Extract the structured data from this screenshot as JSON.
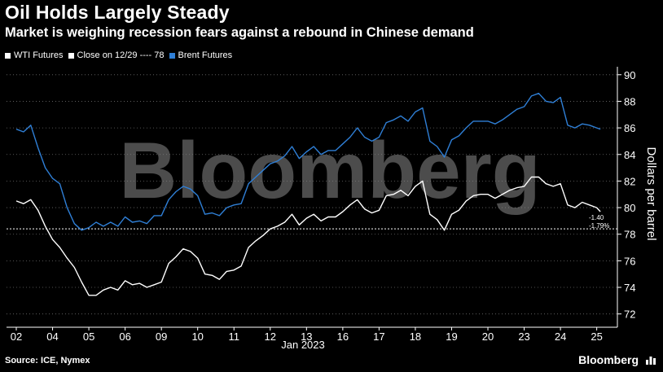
{
  "title": "Oil Holds Largely Steady",
  "subtitle": "Market is weighing recession fears against a rebound in Chinese demand",
  "legend": {
    "wti": "WTI Futures",
    "close": "Close on 12/29 ---- 78",
    "brent": "Brent Futures"
  },
  "source": "Source: ICE, Nymex",
  "brand": "Bloomberg",
  "watermark": "Bloomberg",
  "colors": {
    "background": "#000000",
    "wti": "#ffffff",
    "brent": "#2f7fd6",
    "grid": "#6b6b6b"
  },
  "annotation": {
    "change": "-1.40",
    "change_pct": "-1.79%"
  },
  "chart_data": {
    "type": "line",
    "title": "Oil Holds Largely Steady",
    "subtitle": "Market is weighing recession fears against a rebound in Chinese demand",
    "xlabel": "Jan 2023",
    "ylabel": "Dollars per barrel",
    "ylim": [
      71,
      90.6
    ],
    "y_ticks": [
      72,
      74,
      76,
      78,
      80,
      82,
      84,
      86,
      88,
      90
    ],
    "x_ticks": [
      "02",
      "04",
      "05",
      "06",
      "09",
      "10",
      "11",
      "12",
      "13",
      "16",
      "17",
      "18",
      "19",
      "20",
      "23",
      "24",
      "25"
    ],
    "x_range": [
      0,
      16.3
    ],
    "reference_line": {
      "label": "Close on 12/29",
      "value": 78.4
    },
    "grid": true,
    "series": [
      {
        "name": "WTI Futures",
        "x": [
          0,
          0.2,
          0.4,
          0.6,
          0.8,
          1.0,
          1.2,
          1.4,
          1.6,
          1.8,
          2.0,
          2.2,
          2.4,
          2.6,
          2.8,
          3.0,
          3.2,
          3.4,
          3.6,
          3.8,
          4.0,
          4.2,
          4.4,
          4.6,
          4.8,
          5.0,
          5.2,
          5.4,
          5.6,
          5.8,
          6.0,
          6.2,
          6.4,
          6.6,
          6.8,
          7.0,
          7.2,
          7.4,
          7.6,
          7.8,
          8.0,
          8.2,
          8.4,
          8.6,
          8.8,
          9.0,
          9.2,
          9.4,
          9.6,
          9.8,
          10.0,
          10.2,
          10.4,
          10.6,
          10.8,
          11.0,
          11.2,
          11.4,
          11.6,
          11.8,
          12.0,
          12.2,
          12.4,
          12.6,
          12.8,
          13.0,
          13.2,
          13.4,
          13.6,
          13.8,
          14.0,
          14.2,
          14.4,
          14.6,
          14.8,
          15.0,
          15.2,
          15.4,
          15.6,
          15.8,
          16.0,
          16.1
        ],
        "values": [
          80.5,
          80.3,
          80.6,
          79.8,
          78.6,
          77.6,
          77.0,
          76.2,
          75.5,
          74.4,
          73.4,
          73.4,
          73.8,
          74.0,
          73.8,
          74.5,
          74.2,
          74.3,
          74.0,
          74.2,
          74.4,
          75.8,
          76.3,
          76.9,
          76.7,
          76.2,
          75.0,
          74.9,
          74.6,
          75.2,
          75.3,
          75.6,
          77.0,
          77.5,
          77.9,
          78.4,
          78.6,
          78.9,
          79.5,
          78.7,
          79.2,
          79.5,
          79.0,
          79.3,
          79.3,
          79.7,
          80.2,
          80.6,
          79.9,
          79.6,
          79.8,
          80.9,
          81.0,
          81.3,
          80.9,
          81.6,
          82.0,
          79.5,
          79.1,
          78.3,
          79.5,
          79.8,
          80.5,
          80.9,
          81.0,
          81.0,
          80.7,
          81.0,
          81.3,
          81.5,
          81.6,
          82.3,
          82.3,
          81.8,
          81.6,
          81.8,
          80.2,
          80.0,
          80.4,
          80.2,
          80.0,
          79.7
        ]
      },
      {
        "name": "Brent Futures",
        "x": [
          0,
          0.2,
          0.4,
          0.6,
          0.8,
          1.0,
          1.2,
          1.4,
          1.6,
          1.8,
          2.0,
          2.2,
          2.4,
          2.6,
          2.8,
          3.0,
          3.2,
          3.4,
          3.6,
          3.8,
          4.0,
          4.2,
          4.4,
          4.6,
          4.8,
          5.0,
          5.2,
          5.4,
          5.6,
          5.8,
          6.0,
          6.2,
          6.4,
          6.6,
          6.8,
          7.0,
          7.2,
          7.4,
          7.6,
          7.8,
          8.0,
          8.2,
          8.4,
          8.6,
          8.8,
          9.0,
          9.2,
          9.4,
          9.6,
          9.8,
          10.0,
          10.2,
          10.4,
          10.6,
          10.8,
          11.0,
          11.2,
          11.4,
          11.6,
          11.8,
          12.0,
          12.2,
          12.4,
          12.6,
          12.8,
          13.0,
          13.2,
          13.4,
          13.6,
          13.8,
          14.0,
          14.2,
          14.4,
          14.6,
          14.8,
          15.0,
          15.2,
          15.4,
          15.6,
          15.8,
          16.0,
          16.1
        ],
        "values": [
          85.9,
          85.7,
          86.2,
          84.5,
          83.0,
          82.2,
          81.8,
          80.0,
          78.8,
          78.3,
          78.5,
          78.9,
          78.6,
          78.9,
          78.6,
          79.3,
          78.9,
          79.0,
          78.8,
          79.4,
          79.4,
          80.6,
          81.2,
          81.6,
          81.4,
          80.9,
          79.5,
          79.6,
          79.4,
          80.0,
          80.2,
          80.3,
          81.8,
          82.3,
          82.8,
          83.3,
          83.5,
          83.9,
          84.6,
          83.7,
          84.2,
          84.6,
          84.0,
          84.3,
          84.3,
          84.8,
          85.3,
          86.0,
          85.3,
          85.0,
          85.3,
          86.4,
          86.6,
          86.9,
          86.5,
          87.2,
          87.5,
          85.0,
          84.6,
          83.8,
          85.1,
          85.4,
          86.0,
          86.5,
          86.5,
          86.5,
          86.3,
          86.6,
          87.0,
          87.4,
          87.6,
          88.4,
          88.6,
          88.0,
          87.9,
          88.3,
          86.2,
          86.0,
          86.3,
          86.2,
          86.0,
          85.9
        ]
      }
    ]
  }
}
